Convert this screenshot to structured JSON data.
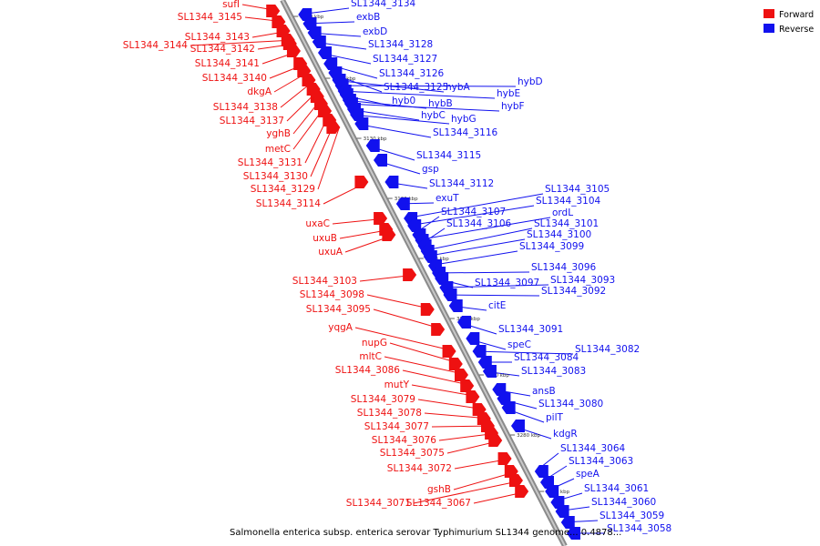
{
  "caption": "Salmonella enterica subsp. enterica serovar Typhimurium SL1344 genome... 0.4878...",
  "legend": [
    {
      "label": "Forward",
      "color": "#ee1111"
    },
    {
      "label": "Reverse",
      "color": "#1111ee"
    }
  ],
  "colors": {
    "forward": "#ee1111",
    "reverse": "#1111ee",
    "backbone": "#8a8a8a"
  },
  "ticks": [
    "3150 kbp",
    "3140 kbp",
    "3130 kbp",
    "3120 kbp",
    "3110 kbp",
    "3100 kbp",
    "3290 kbp",
    "3280 kbp",
    "3270 kbp"
  ],
  "forward_genes": [
    "sufI",
    "SL1344_3145",
    "SL1344_3143",
    "SL1344_3144",
    "SL1344_3142",
    "SL1344_3141",
    "SL1344_3140",
    "dkgA",
    "SL1344_3138",
    "SL1344_3137",
    "yghB",
    "metC",
    "SL1344_3131",
    "SL1344_3130",
    "SL1344_3129",
    "SL1344_3114",
    "uxaC",
    "uxuB",
    "uxuA",
    "SL1344_3103",
    "SL1344_3098",
    "SL1344_3095",
    "yqgA",
    "nupG",
    "mltC",
    "SL1344_3086",
    "mutY",
    "SL1344_3079",
    "SL1344_3078",
    "SL1344_3077",
    "SL1344_3076",
    "SL1344_3075",
    "SL1344_3072",
    "gshB",
    "SL1344_3071",
    "SL1344_3067"
  ],
  "reverse_genes": [
    "SL1344_3134",
    "exbB",
    "exbD",
    "SL1344_3128",
    "SL1344_3127",
    "SL1344_3126",
    "SL1344_3125",
    "hybA",
    "hybD",
    "hybE",
    "hyb0",
    "hybB",
    "hybF",
    "hybC",
    "hybG",
    "SL1344_3116",
    "SL1344_3115",
    "gsp",
    "SL1344_3112",
    "exuT",
    "SL1344_3105",
    "SL1344_3104",
    "SL1344_3107",
    "ordL",
    "SL1344_3106",
    "SL1344_3101",
    "SL1344_3100",
    "SL1344_3099",
    "SL1344_3096",
    "SL1344_3097",
    "SL1344_3093",
    "SL1344_3092",
    "citE",
    "SL1344_3091",
    "speC",
    "SL1344_3082",
    "SL1344_3084",
    "SL1344_3083",
    "ansB",
    "SL1344_3080",
    "pilT",
    "kdgR",
    "SL1344_3064",
    "SL1344_3063",
    "speA",
    "SL1344_3061",
    "SL1344_3060",
    "SL1344_3059",
    "SL1344_3058"
  ]
}
